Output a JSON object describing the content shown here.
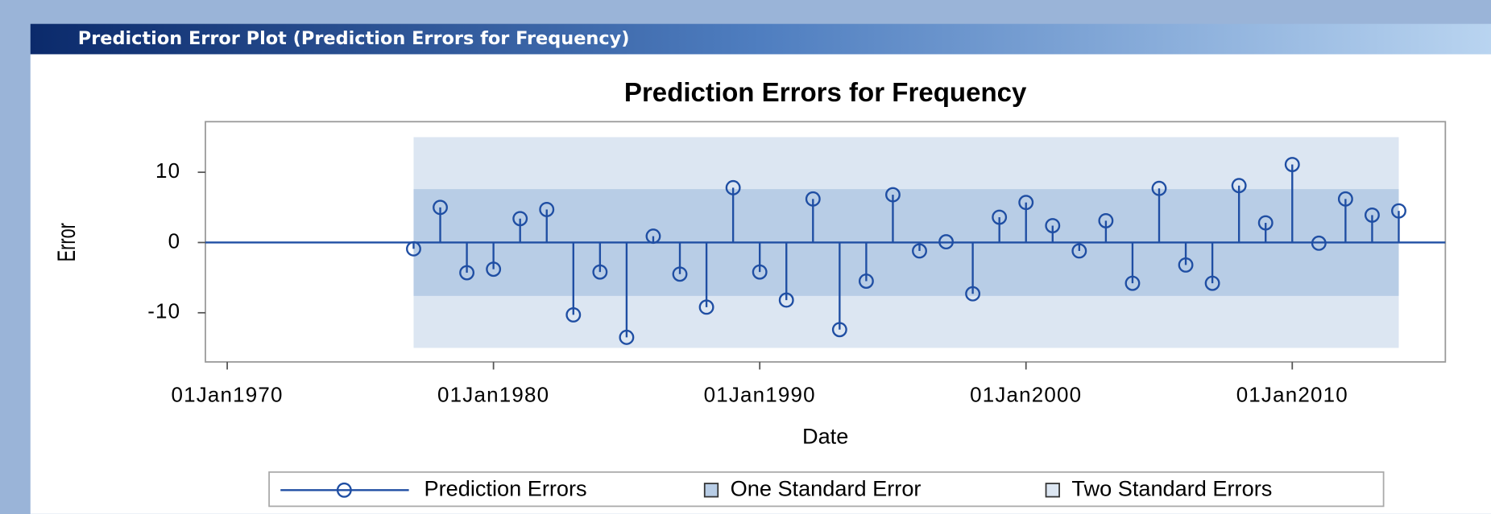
{
  "window_title": "Prediction Error Plot (Prediction Errors for Frequency)",
  "chart_data": {
    "type": "stem",
    "title": "Prediction Errors for Frequency",
    "x_label": "Date",
    "y_label": "Error",
    "xlim": [
      1969.18,
      2015.75
    ],
    "ylim": [
      -17.0,
      17.2
    ],
    "xticks": [
      {
        "value": 1970,
        "label": "01Jan1970"
      },
      {
        "value": 1980,
        "label": "01Jan1980"
      },
      {
        "value": 1990,
        "label": "01Jan1990"
      },
      {
        "value": 2000,
        "label": "01Jan2000"
      },
      {
        "value": 2010,
        "label": "01Jan2010"
      }
    ],
    "yticks": [
      -10,
      0,
      10
    ],
    "series": [
      {
        "name": "Prediction Errors",
        "color": "#1f4ea3",
        "x": [
          1977,
          1978,
          1979,
          1980,
          1981,
          1982,
          1983,
          1984,
          1985,
          1986,
          1987,
          1988,
          1989,
          1990,
          1991,
          1992,
          1993,
          1994,
          1995,
          1996,
          1997,
          1998,
          1999,
          2000,
          2001,
          2002,
          2003,
          2004,
          2005,
          2006,
          2007,
          2008,
          2009,
          2010,
          2011,
          2012,
          2013,
          2014
        ],
        "values": [
          -0.9,
          5.0,
          -4.3,
          -3.8,
          3.4,
          4.7,
          -10.3,
          -4.2,
          -13.5,
          0.9,
          -4.5,
          -9.2,
          7.8,
          -4.2,
          -8.2,
          6.2,
          -12.4,
          -5.5,
          6.8,
          -1.2,
          0.1,
          -7.3,
          3.6,
          5.7,
          2.4,
          -1.2,
          3.1,
          -5.8,
          7.7,
          -3.2,
          -5.8,
          8.1,
          2.8,
          11.1,
          -0.1,
          6.2,
          3.9,
          4.5
        ]
      }
    ],
    "bands": [
      {
        "name": "One Standard Error",
        "color": "#b8cde6",
        "value": 7.6
      },
      {
        "name": "Two Standard Errors",
        "color": "#dce6f2",
        "value": 15.0
      }
    ]
  }
}
